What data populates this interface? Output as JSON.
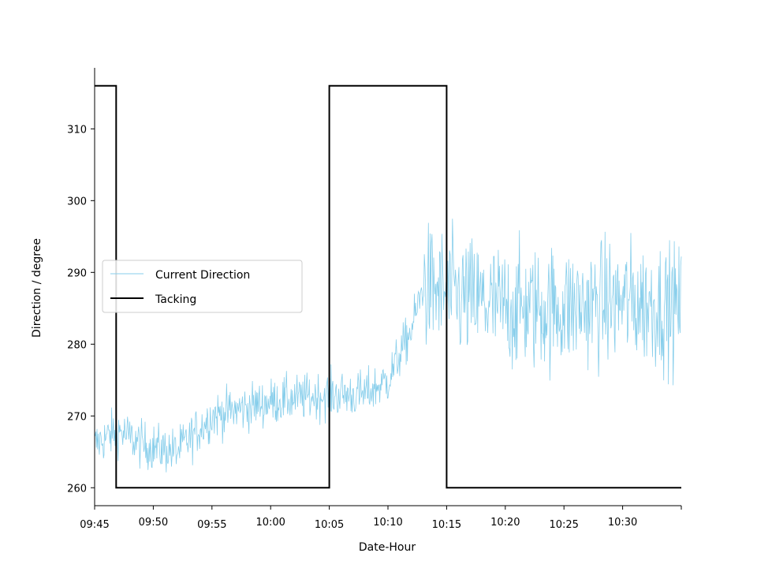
{
  "chart_data": {
    "type": "line",
    "xlabel": "Date-Hour",
    "ylabel": "Direction / degree",
    "x_ticks": [
      "09:45",
      "09:50",
      "09:55",
      "10:00",
      "10:05",
      "10:10",
      "10:15",
      "10:20",
      "10:25",
      "10:30"
    ],
    "x_range": [
      "09:45",
      "10:35"
    ],
    "y_ticks": [
      260,
      270,
      280,
      290,
      300,
      310
    ],
    "ylim": [
      257.5,
      318.5
    ],
    "grid": false,
    "legend_position": "center-left",
    "colors": {
      "current": "#87ceeb",
      "tacking": "#000000"
    },
    "series": [
      {
        "name": "Current Direction",
        "style": "thin-line",
        "sampling": "approx. every 3 s from 09:45 to 10:35, trend anchors below",
        "trend_points": [
          {
            "x": "09:45",
            "y": 266
          },
          {
            "x": "09:47",
            "y": 268
          },
          {
            "x": "09:49",
            "y": 266
          },
          {
            "x": "09:52",
            "y": 265
          },
          {
            "x": "09:55",
            "y": 270
          },
          {
            "x": "10:00",
            "y": 272
          },
          {
            "x": "10:05",
            "y": 273
          },
          {
            "x": "10:08",
            "y": 273
          },
          {
            "x": "10:10",
            "y": 275
          },
          {
            "x": "10:12",
            "y": 282
          },
          {
            "x": "10:13",
            "y": 288
          },
          {
            "x": "10:15",
            "y": 287
          },
          {
            "x": "10:20",
            "y": 285
          },
          {
            "x": "10:25",
            "y": 285
          },
          {
            "x": "10:30",
            "y": 286
          },
          {
            "x": "10:35",
            "y": 285
          }
        ],
        "noise_amplitude_before_10_13": 3,
        "noise_amplitude_after_10_13": 8
      },
      {
        "name": "Tacking",
        "style": "step-line",
        "points": [
          {
            "x": "09:45",
            "y": 316
          },
          {
            "x": "09:46:50",
            "y": 316
          },
          {
            "x": "09:46:50",
            "y": 260
          },
          {
            "x": "10:05",
            "y": 260
          },
          {
            "x": "10:05",
            "y": 316
          },
          {
            "x": "10:15",
            "y": 316
          },
          {
            "x": "10:15",
            "y": 260
          },
          {
            "x": "10:35",
            "y": 260
          }
        ]
      }
    ]
  }
}
